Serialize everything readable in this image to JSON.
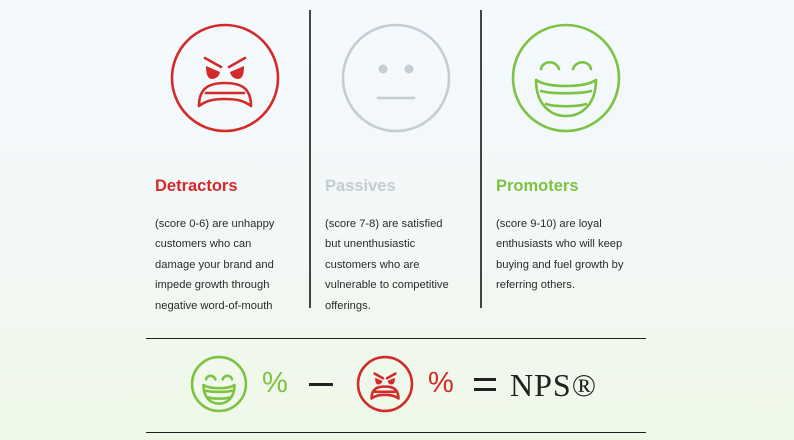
{
  "colors": {
    "detractor": "#d42a2a",
    "passive": "#c5ccd4",
    "promoter": "#7dc242",
    "text": "#2b2b2b",
    "rule": "#222222"
  },
  "segments": [
    {
      "title": "Detractors",
      "icon": "angry-face-icon",
      "lines": [
        "(score 0-6) are unhappy",
        "customers who can",
        "damage your brand and",
        "impede growth through",
        "negative word-of-mouth"
      ]
    },
    {
      "title": "Passives",
      "icon": "neutral-face-icon",
      "lines": [
        "(score 7-8) are satisfied",
        "but unenthusiastic",
        "customers who are",
        "vulnerable to competitive",
        "offerings."
      ]
    },
    {
      "title": "Promoters",
      "icon": "laughing-face-icon",
      "lines": [
        "(score 9-10) are loyal",
        "enthusiasts who will keep",
        "buying and fuel growth by",
        "referring others."
      ]
    }
  ],
  "formula": {
    "promoter_percent": "%",
    "detractor_percent": "%",
    "result": "NPS®"
  }
}
